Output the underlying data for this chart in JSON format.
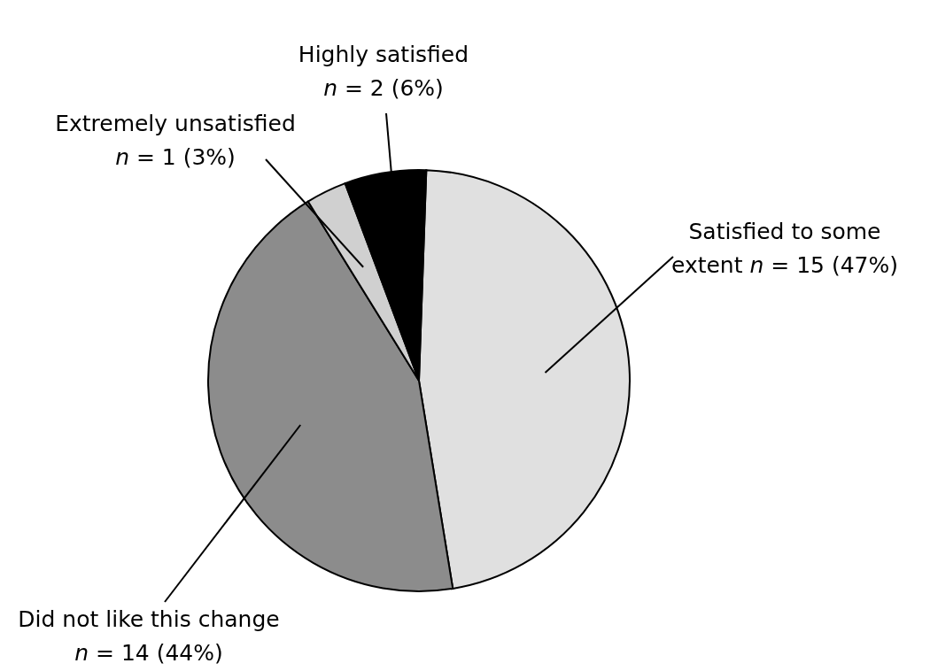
{
  "chart_data": {
    "type": "pie",
    "categories": [
      "Satisfied to some extent",
      "Did not like this change",
      "Extremely unsatisfied",
      "Highly satisfied"
    ],
    "values": [
      15,
      14,
      1,
      2
    ],
    "colors": [
      "#e0e0e0",
      "#8c8c8c",
      "#d0d0d0",
      "#000000"
    ],
    "value_labels": [
      "n = 15 (47%)",
      "n = 14 (44%)",
      "n = 1 (3%)",
      "n = 2 (6%)"
    ]
  }
}
